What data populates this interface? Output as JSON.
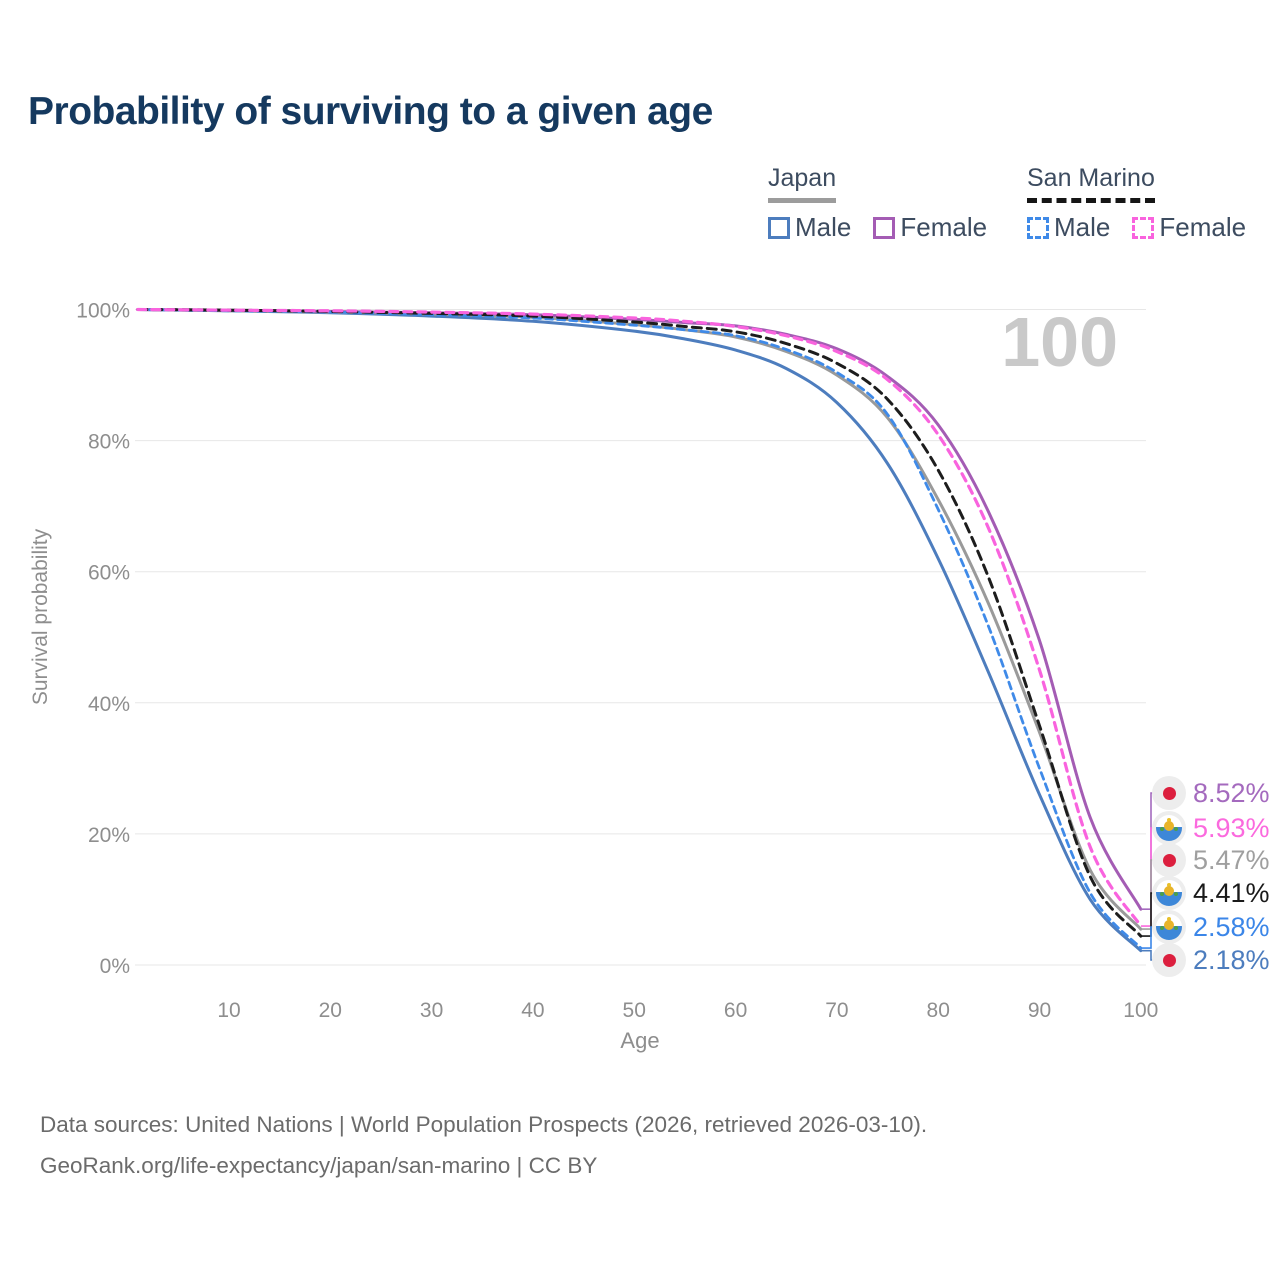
{
  "title": "Probability of surviving to a given age",
  "watermark_age": "100",
  "legend": {
    "groups": [
      {
        "name": "Japan",
        "line_style": "solid",
        "underline_color": "#9c9c9c",
        "items": [
          {
            "label": "Male",
            "color": "#4d7dbe"
          },
          {
            "label": "Female",
            "color": "#a45cb4"
          }
        ]
      },
      {
        "name": "San Marino",
        "line_style": "dashed",
        "underline_color": "#161616",
        "items": [
          {
            "label": "Male",
            "color": "#3f8ae8"
          },
          {
            "label": "Female",
            "color": "#f963de"
          }
        ]
      }
    ]
  },
  "chart_data": {
    "type": "line",
    "title": "Probability of surviving to a given age",
    "xlabel": "Age",
    "ylabel": "Survival probability",
    "xlim": [
      0,
      100
    ],
    "ylim": [
      0,
      100
    ],
    "grid": "horizontal",
    "x_ticks": [
      10,
      20,
      30,
      40,
      50,
      60,
      70,
      80,
      90,
      100
    ],
    "y_ticks": [
      0,
      20,
      40,
      60,
      80,
      100
    ],
    "y_tick_suffix": "%",
    "x": [
      1,
      10,
      20,
      30,
      40,
      50,
      55,
      60,
      65,
      70,
      75,
      80,
      85,
      90,
      95,
      100
    ],
    "series": [
      {
        "name": "Japan Male",
        "country": "Japan",
        "sex": "Male",
        "color": "#4d7dbe",
        "dash": "",
        "width": 3,
        "end_value_pct": 2.18,
        "values": [
          100,
          99.8,
          99.5,
          99.0,
          98.2,
          96.7,
          95.5,
          93.8,
          91.0,
          85.8,
          76.5,
          62.0,
          44.5,
          26.0,
          10.0,
          2.18
        ]
      },
      {
        "name": "Japan Total",
        "country": "Japan",
        "sex": "Both",
        "color": "#9a9a9a",
        "dash": "",
        "width": 3,
        "end_value_pct": 5.47,
        "values": [
          100,
          99.8,
          99.6,
          99.3,
          98.8,
          97.7,
          96.9,
          95.8,
          93.6,
          90.0,
          83.5,
          71.0,
          55.0,
          35.5,
          14.5,
          5.47
        ]
      },
      {
        "name": "Japan Female",
        "country": "Japan",
        "sex": "Female",
        "color": "#a45cb4",
        "dash": "",
        "width": 3,
        "end_value_pct": 8.52,
        "values": [
          100,
          99.9,
          99.7,
          99.5,
          99.2,
          98.5,
          98.0,
          97.5,
          96.2,
          94.0,
          89.8,
          82.4,
          69.0,
          49.5,
          22.5,
          8.52
        ]
      },
      {
        "name": "San Marino Male",
        "country": "San Marino",
        "sex": "Male",
        "color": "#3f8ae8",
        "dash": "7 5",
        "width": 2.8,
        "end_value_pct": 2.58,
        "values": [
          100,
          99.8,
          99.6,
          99.2,
          98.7,
          97.6,
          96.9,
          96.0,
          93.9,
          90.4,
          84.0,
          69.5,
          51.5,
          30.0,
          11.0,
          2.58
        ]
      },
      {
        "name": "San Marino Total",
        "country": "San Marino",
        "sex": "Both",
        "color": "#1d1d1d",
        "dash": "9 6",
        "width": 3,
        "end_value_pct": 4.41,
        "values": [
          100,
          99.9,
          99.7,
          99.4,
          99.0,
          98.1,
          97.4,
          96.6,
          94.8,
          91.8,
          86.3,
          75.5,
          59.0,
          36.5,
          13.5,
          4.41
        ]
      },
      {
        "name": "San Marino Female",
        "country": "San Marino",
        "sex": "Female",
        "color": "#f963de",
        "dash": "8 6",
        "width": 3.2,
        "end_value_pct": 5.93,
        "values": [
          100,
          99.9,
          99.8,
          99.6,
          99.3,
          98.7,
          98.2,
          97.4,
          96.0,
          93.6,
          89.3,
          80.9,
          66.5,
          45.0,
          18.0,
          5.93
        ]
      }
    ]
  },
  "end_labels": [
    {
      "value": "8.52%",
      "pct": 8.52,
      "color": "#a46abe",
      "flag": "japan",
      "series": "Japan Female"
    },
    {
      "value": "5.93%",
      "pct": 5.93,
      "color": "#fb6ade",
      "flag": "san-marino",
      "series": "San Marino Female"
    },
    {
      "value": "5.47%",
      "pct": 5.47,
      "color": "#9f9f9f",
      "flag": "japan",
      "series": "Japan Total"
    },
    {
      "value": "4.41%",
      "pct": 4.41,
      "color": "#1a1a1a",
      "flag": "san-marino",
      "series": "San Marino Total"
    },
    {
      "value": "2.58%",
      "pct": 2.58,
      "color": "#3b86e8",
      "flag": "san-marino",
      "series": "San Marino Male"
    },
    {
      "value": "2.18%",
      "pct": 2.18,
      "color": "#4d7dbe",
      "flag": "japan",
      "series": "Japan Male"
    }
  ],
  "footer": {
    "line1": "Data sources: United Nations | World Population Prospects (2026, retrieved 2026-03-10).",
    "line2": "GeoRank.org/life-expectancy/japan/san-marino | CC BY"
  }
}
